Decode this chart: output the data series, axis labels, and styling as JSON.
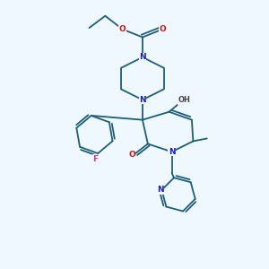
{
  "background_color": "#f0f8ff",
  "bond_color": "#1a5f7a",
  "atom_colors": {
    "N": "#1a1acc",
    "O": "#cc1111",
    "F": "#cc33aa",
    "H": "#444444"
  },
  "figsize": [
    3.0,
    3.0
  ],
  "dpi": 100
}
